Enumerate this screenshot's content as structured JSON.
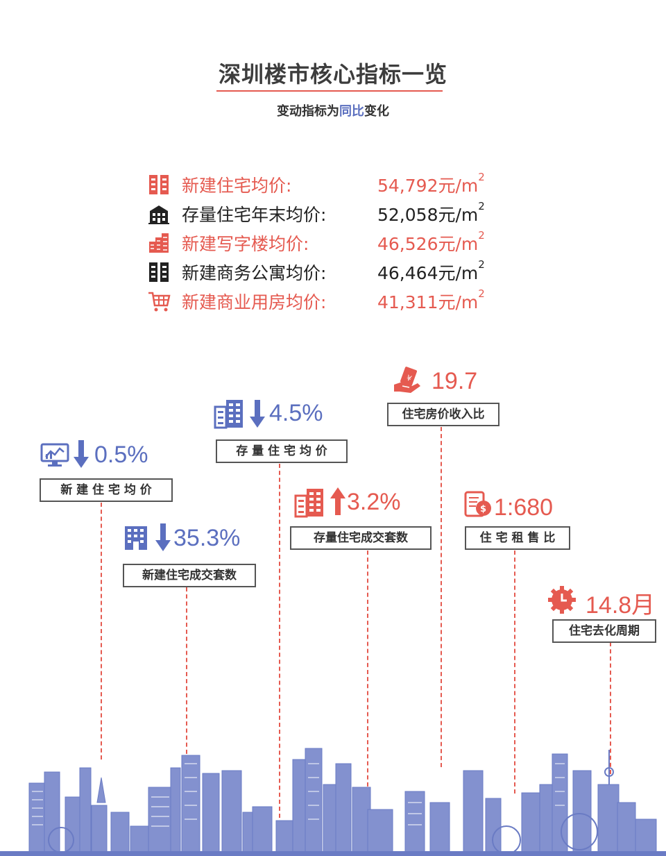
{
  "header": {
    "title": "深圳楼市核心指标一览",
    "subtitle_prefix": "变动指标为",
    "subtitle_highlight": "同比",
    "subtitle_suffix": "变化"
  },
  "prices": [
    {
      "label": "新建住宅均价:",
      "value": "54,792元/m",
      "sup": "2",
      "color": "#e55a50",
      "icon": "building-icon"
    },
    {
      "label": "存量住宅年末均价:",
      "value": "52,058元/m",
      "sup": "2",
      "color": "#222222",
      "icon": "apartment-icon"
    },
    {
      "label": "新建写字楼均价:",
      "value": "46,526元/m",
      "sup": "2",
      "color": "#e55a50",
      "icon": "office-tower-icon"
    },
    {
      "label": "新建商务公寓均价:",
      "value": "46,464元/m",
      "sup": "2",
      "color": "#222222",
      "icon": "building-icon"
    },
    {
      "label": "新建商业用房均价:",
      "value": "41,311元/m",
      "sup": "2",
      "color": "#e55a50",
      "icon": "shopping-cart-icon"
    }
  ],
  "indicators": [
    {
      "label": "新 建 住 宅 均 价",
      "value": "0.5%",
      "direction": "down",
      "icon": "monitor-chart-icon"
    },
    {
      "label": "新建住宅成交套数",
      "value": "35.3%",
      "direction": "down",
      "icon": "building-icon"
    },
    {
      "label": "存 量 住 宅 均 价",
      "value": "4.5%",
      "direction": "down",
      "icon": "buildings-icon"
    },
    {
      "label": "存量住宅成交套数",
      "value": "3.2%",
      "direction": "up",
      "icon": "buildings-icon"
    },
    {
      "label": "住宅房价收入比",
      "value": "19.7",
      "direction": "none",
      "icon": "money-hand-icon"
    },
    {
      "label": "住 宅 租 售 比",
      "value": "1:680",
      "direction": "none",
      "icon": "contract-icon"
    },
    {
      "label": "住宅去化周期",
      "value": "14.8月",
      "direction": "none",
      "icon": "clock-gear-icon"
    }
  ],
  "colors": {
    "accent_red": "#e55a50",
    "accent_blue": "#5b6fbf",
    "border": "#555555"
  }
}
